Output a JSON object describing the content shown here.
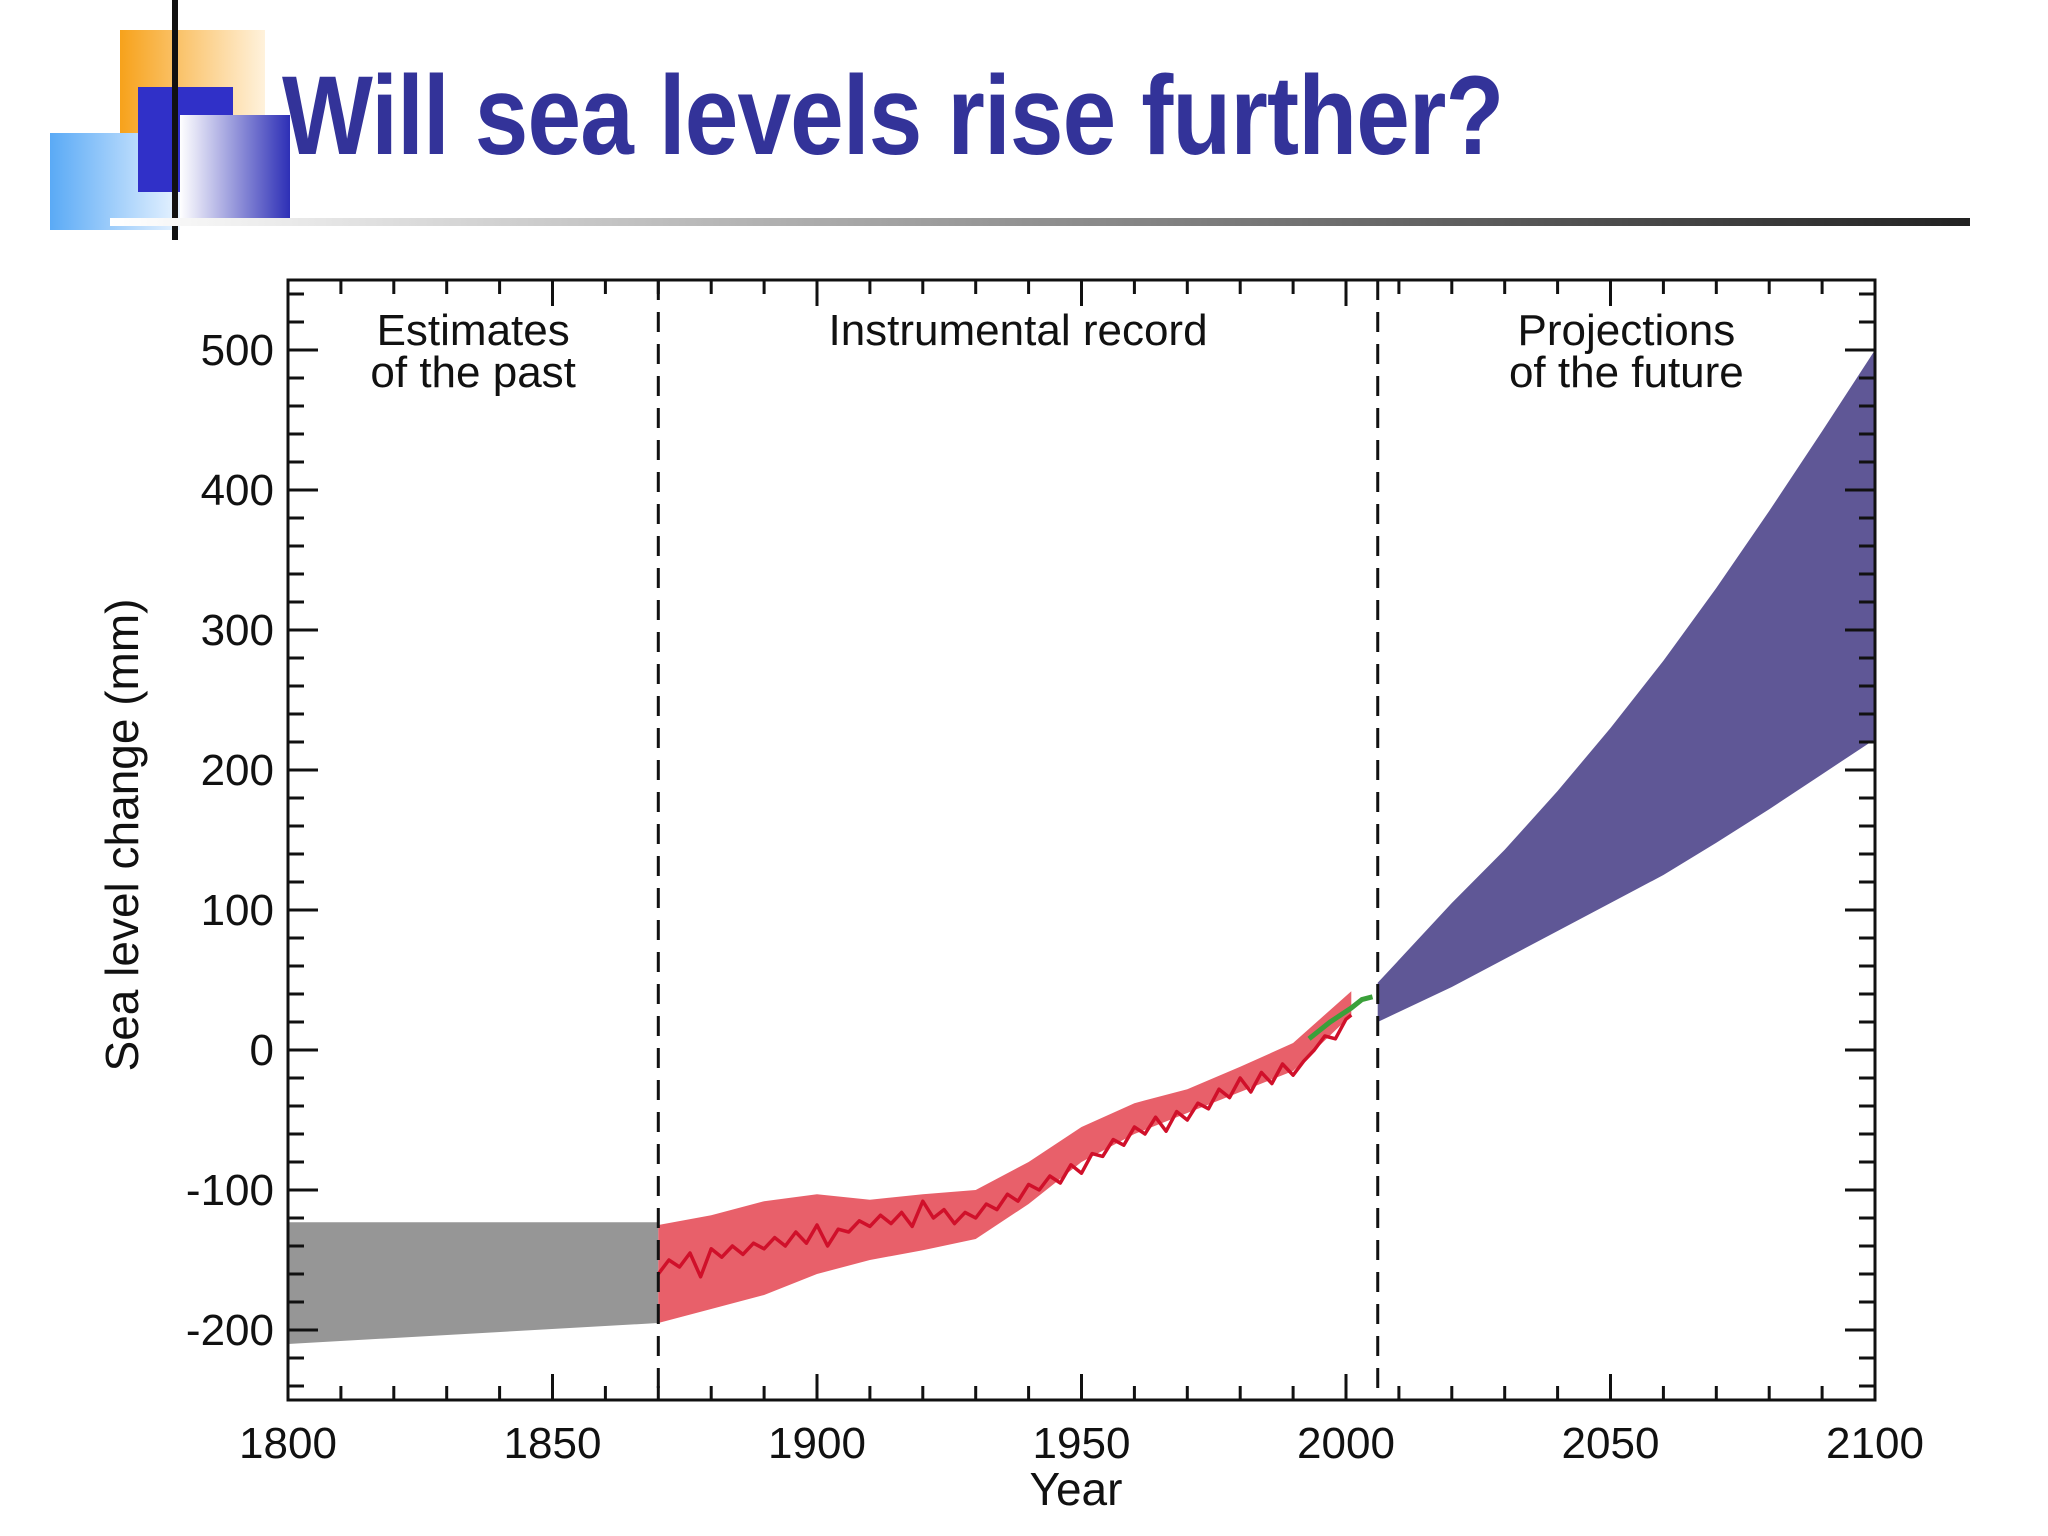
{
  "slide": {
    "title": "Will sea levels rise further?"
  },
  "colors": {
    "title": "#333399",
    "past_band": "#969696",
    "instrumental_band": "#e8606a",
    "instrumental_line": "#d0102a",
    "satellite_line": "#3aa03a",
    "projection_band": "#5f5796"
  },
  "chart_data": {
    "type": "area",
    "xlabel": "Year",
    "ylabel": "Sea level change (mm)",
    "xlim": [
      1800,
      2100
    ],
    "ylim": [
      -250,
      550
    ],
    "x_ticks": [
      1800,
      1850,
      1900,
      1950,
      2000,
      2050,
      2100
    ],
    "y_ticks": [
      -200,
      -100,
      0,
      100,
      200,
      300,
      400,
      500
    ],
    "x_minor_step": 10,
    "y_minor_step": 20,
    "dividers": [
      1870,
      2006
    ],
    "annotations": [
      {
        "lines": [
          "Estimates",
          "of the past"
        ],
        "x": 1835
      },
      {
        "lines": [
          "Instrumental record"
        ],
        "x": 1938
      },
      {
        "lines": [
          "Projections",
          "of the future"
        ],
        "x": 2053
      }
    ],
    "series": [
      {
        "kind": "band",
        "key": "past",
        "x": [
          1800,
          1870
        ],
        "lower": [
          -210,
          -195
        ],
        "upper": [
          -123,
          -123
        ]
      },
      {
        "kind": "band",
        "key": "instrumental",
        "x": [
          1870,
          1880,
          1890,
          1900,
          1910,
          1920,
          1930,
          1940,
          1950,
          1960,
          1970,
          1980,
          1990,
          2001
        ],
        "lower": [
          -195,
          -185,
          -175,
          -160,
          -150,
          -143,
          -135,
          -110,
          -80,
          -60,
          -45,
          -30,
          -15,
          25
        ],
        "upper": [
          -125,
          -118,
          -108,
          -103,
          -107,
          -103,
          -100,
          -80,
          -55,
          -38,
          -28,
          -12,
          5,
          42
        ]
      },
      {
        "kind": "line",
        "key": "instrumental",
        "x": [
          1870,
          1872,
          1874,
          1876,
          1878,
          1880,
          1882,
          1884,
          1886,
          1888,
          1890,
          1892,
          1894,
          1896,
          1898,
          1900,
          1902,
          1904,
          1906,
          1908,
          1910,
          1912,
          1914,
          1916,
          1918,
          1920,
          1922,
          1924,
          1926,
          1928,
          1930,
          1932,
          1934,
          1936,
          1938,
          1940,
          1942,
          1944,
          1946,
          1948,
          1950,
          1952,
          1954,
          1956,
          1958,
          1960,
          1962,
          1964,
          1966,
          1968,
          1970,
          1972,
          1974,
          1976,
          1978,
          1980,
          1982,
          1984,
          1986,
          1988,
          1990,
          1992,
          1994,
          1996,
          1998,
          2000,
          2001
        ],
        "y": [
          -160,
          -150,
          -155,
          -145,
          -162,
          -142,
          -148,
          -140,
          -146,
          -138,
          -142,
          -134,
          -140,
          -130,
          -138,
          -125,
          -140,
          -128,
          -130,
          -122,
          -126,
          -118,
          -124,
          -116,
          -126,
          -108,
          -120,
          -114,
          -124,
          -116,
          -120,
          -110,
          -114,
          -103,
          -108,
          -96,
          -100,
          -90,
          -95,
          -82,
          -88,
          -74,
          -76,
          -64,
          -68,
          -55,
          -60,
          -48,
          -58,
          -44,
          -50,
          -38,
          -42,
          -28,
          -34,
          -20,
          -30,
          -16,
          -24,
          -10,
          -18,
          -8,
          0,
          10,
          8,
          22,
          25
        ]
      },
      {
        "kind": "line",
        "key": "satellite",
        "x": [
          1993,
          1995,
          1997,
          1999,
          2001,
          2003,
          2005
        ],
        "y": [
          8,
          14,
          20,
          25,
          30,
          36,
          38
        ]
      },
      {
        "kind": "band",
        "key": "projection",
        "x": [
          2006,
          2020,
          2030,
          2040,
          2050,
          2060,
          2070,
          2080,
          2090,
          2100
        ],
        "lower": [
          20,
          45,
          65,
          85,
          105,
          125,
          148,
          172,
          197,
          222
        ],
        "upper": [
          48,
          105,
          143,
          185,
          230,
          278,
          330,
          385,
          442,
          500
        ]
      }
    ]
  }
}
